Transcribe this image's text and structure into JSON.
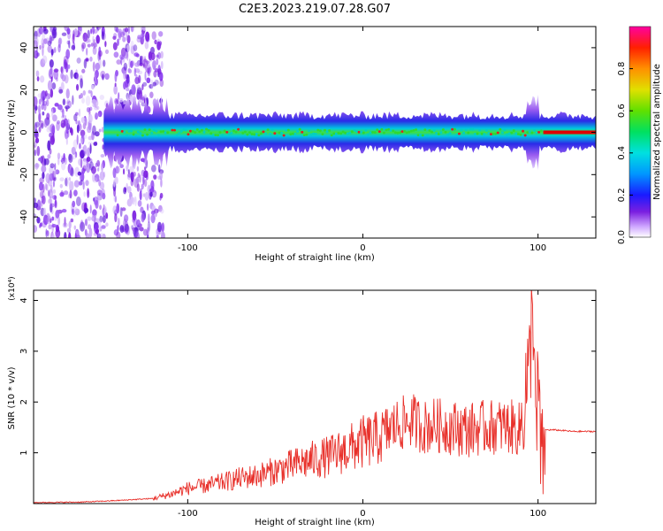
{
  "figure_title": "C2E3.2023.219.07.28.G07",
  "colors": {
    "snr_line": "#e8302a",
    "spectrogram_sparse": "#7b1fe0",
    "spectrogram_peak": "#e00000"
  },
  "chart_data": [
    {
      "type": "heatmap",
      "title": "",
      "xlabel": "Height of straight line (km)",
      "ylabel": "Frequency (Hz)",
      "xlim": [
        -188,
        133
      ],
      "ylim": [
        -50,
        50
      ],
      "xticks": [
        -100,
        0,
        100
      ],
      "xtick_labels": [
        "-100",
        "0",
        "100"
      ],
      "yticks": [
        -40,
        -20,
        0,
        20,
        40
      ],
      "ytick_labels": [
        "-40",
        "-20",
        "0",
        "20",
        "40"
      ],
      "grid": false,
      "colorbar": {
        "label": "Normalized spectral amplitude",
        "range": [
          0,
          1
        ],
        "ticks": [
          0,
          0.2,
          0.4,
          0.6,
          0.8
        ],
        "tick_labels": [
          "0.0",
          "0.2",
          "0.4",
          "0.6",
          "0.8"
        ],
        "colormap": "rainbow"
      },
      "description_of_features": {
        "center_frequency_hz": 0,
        "noise_region_x": [
          -188,
          -120
        ],
        "signal_onset_x": -148,
        "disturbance_x": 97,
        "strong_tone_x": [
          103,
          133
        ]
      }
    },
    {
      "type": "line",
      "title": "",
      "xlabel": "Height of straight line (km)",
      "ylabel": "SNR (10 * v/v)",
      "y_multiplier": "(x10⁴)",
      "xlim": [
        -188,
        133
      ],
      "ylim": [
        0,
        4.2
      ],
      "xticks": [
        -100,
        0,
        100
      ],
      "xtick_labels": [
        "-100",
        "0",
        "100"
      ],
      "yticks": [
        1,
        2,
        3,
        4
      ],
      "ytick_labels": [
        "1",
        "2",
        "3",
        "4"
      ],
      "grid": false,
      "series": [
        {
          "x": [
            -188,
            -160,
            -140,
            -120,
            -110,
            -100,
            -90,
            -80,
            -70,
            -60,
            -50,
            -40,
            -30,
            -20,
            -10,
            0,
            10,
            15,
            20,
            25,
            28,
            30,
            35,
            40,
            50,
            60,
            70,
            80,
            85,
            90,
            93,
            95,
            97,
            98,
            99,
            100,
            102,
            104,
            110,
            120,
            133
          ],
          "y": [
            0.02,
            0.03,
            0.06,
            0.1,
            0.18,
            0.3,
            0.35,
            0.42,
            0.5,
            0.55,
            0.65,
            0.75,
            0.85,
            0.92,
            1.05,
            1.2,
            1.3,
            1.45,
            1.55,
            1.6,
            1.65,
            1.6,
            1.5,
            1.55,
            1.5,
            1.45,
            1.5,
            1.52,
            1.5,
            1.45,
            2.3,
            2.5,
            4.1,
            3.0,
            0.8,
            2.6,
            0.5,
            1.45,
            1.45,
            1.42,
            1.42
          ]
        }
      ]
    }
  ]
}
